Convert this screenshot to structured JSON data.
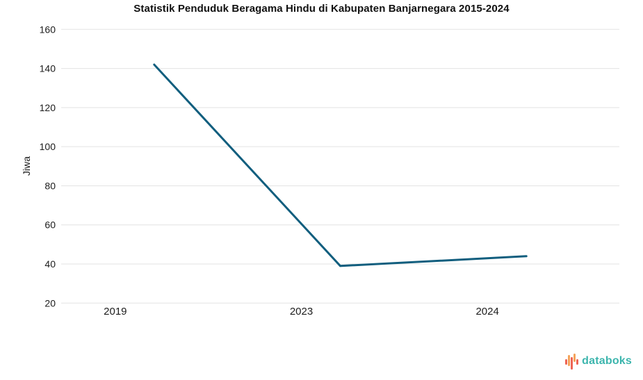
{
  "chart_data": {
    "type": "line",
    "title": "Statistik Penduduk Beragama Hindu di Kabupaten Banjarnegara 2015-2024",
    "xlabel": "",
    "ylabel": "Jiwa",
    "categories": [
      "2019",
      "2023",
      "2024"
    ],
    "values": [
      142,
      39,
      44
    ],
    "ylim": [
      20,
      160
    ],
    "yticks": [
      20,
      40,
      60,
      80,
      100,
      120,
      140,
      160
    ],
    "grid": true,
    "legend_position": "none",
    "line_color": "#115e7e",
    "grid_color": "#e3e3e3",
    "tick_label_color": "#1c1c1c"
  },
  "branding": {
    "logo_text": "databoks",
    "logo_text_color": "#3cb5ad",
    "logo_bar_colors": [
      "#ee6352",
      "#f4a259",
      "#ee6352",
      "#f4a259",
      "#ee6352"
    ]
  }
}
